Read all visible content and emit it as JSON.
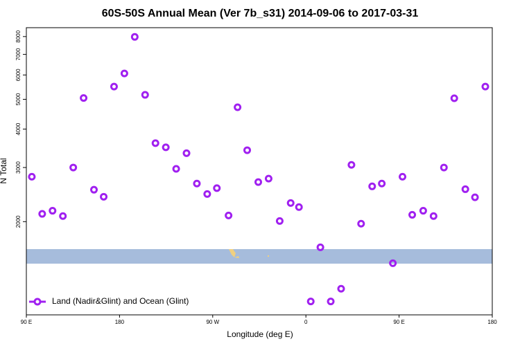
{
  "chart_data": {
    "type": "scatter",
    "title": "60S-50S Annual Mean (Ver 7b_s31)   2014-09-06 to 2017-03-31",
    "x_label": "Longitude (deg E)",
    "y_label": "N Total",
    "log_y": true,
    "legend_position": "lower left",
    "xlim": [
      90,
      540
    ],
    "xticks": [
      {
        "value": 90,
        "label": "90 E"
      },
      180,
      {
        "value": 270,
        "label": "90 W"
      },
      {
        "value": 360,
        "label": "0"
      },
      {
        "value": 450,
        "label": "90 E"
      },
      {
        "value": 540,
        "label": "180"
      }
    ],
    "ylim": [
      995,
      8550
    ],
    "yticks": [
      2000,
      3000,
      4000,
      5000,
      6000,
      7000,
      8000
    ],
    "x": [
      95.3,
      105.3,
      115.3,
      125.3,
      135.3,
      145.3,
      155.3,
      164.7,
      174.7,
      184.7,
      194.7,
      204.7,
      214.7,
      224.7,
      234.7,
      244.7,
      254.7,
      264.7,
      274,
      285.3,
      294,
      303.3,
      314,
      324,
      334.7,
      345.3,
      353.3,
      364.7,
      374,
      384,
      394,
      404,
      413.3,
      424,
      433.3,
      444,
      453.3,
      462.7,
      473.3,
      483.3,
      493.3,
      503.3,
      514,
      523.3,
      533.3
    ],
    "series": [
      {
        "name": "Land (Nadir&Glint) and Ocean (Glint)",
        "color": "#a020f0",
        "values": [
          2800,
          2120,
          2170,
          2085,
          3000,
          5050,
          2540,
          2410,
          5500,
          6070,
          7980,
          5170,
          3600,
          3490,
          2970,
          3340,
          2660,
          2460,
          2570,
          2095,
          4710,
          3415,
          2690,
          2760,
          2010,
          2300,
          2230,
          1100,
          1650,
          1100,
          1210,
          3060,
          1970,
          2605,
          2660,
          1465,
          2800,
          2105,
          2170,
          2085,
          3000,
          5040,
          2550,
          2400,
          5500
        ]
      }
    ]
  }
}
